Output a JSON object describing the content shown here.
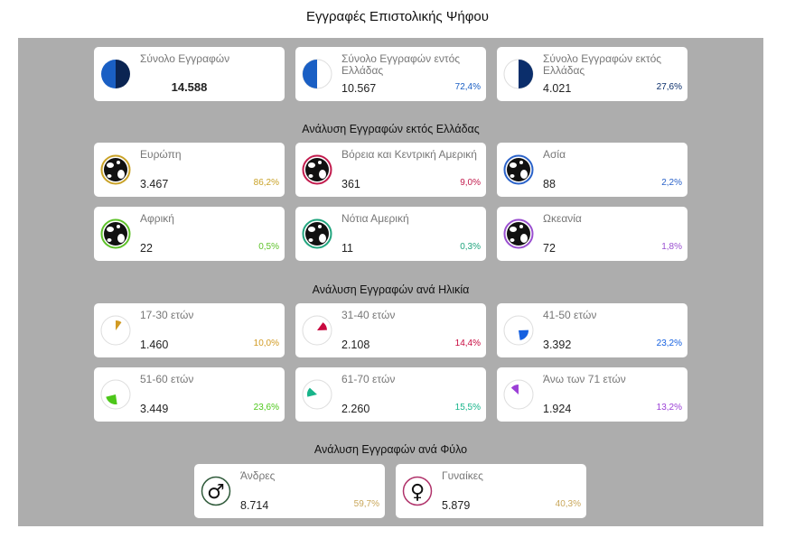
{
  "title": "Εγγραφές Επιστολικής Ψήφου",
  "totals": [
    {
      "label": "Σύνολο Εγγραφών",
      "value": "14.588",
      "icon": "half-circle-full-icon"
    },
    {
      "label": "Σύνολο Εγγραφών εντός Ελλάδας",
      "value": "10.567",
      "pct": "72,4%",
      "color": "#1a5fc4",
      "icon": "half-circle-left-icon"
    },
    {
      "label": "Σύνολο Εγγραφών εκτός Ελλάδας",
      "value": "4.021",
      "pct": "27,6%",
      "color": "#0b2e6b",
      "icon": "half-circle-right-icon"
    }
  ],
  "regions_heading": "Ανάλυση Εγγραφών εκτός Ελλάδας",
  "regions": [
    {
      "label": "Ευρώπη",
      "value": "3.467",
      "pct": "86,2%",
      "color": "#c9a227",
      "icon": "globe-icon"
    },
    {
      "label": "Βόρεια και Κεντρική Αμερική",
      "value": "361",
      "pct": "9,0%",
      "color": "#c21b4d",
      "icon": "globe-icon"
    },
    {
      "label": "Ασία",
      "value": "88",
      "pct": "2,2%",
      "color": "#2a62c9",
      "icon": "globe-icon"
    },
    {
      "label": "Αφρική",
      "value": "22",
      "pct": "0,5%",
      "color": "#5ec22a",
      "icon": "globe-icon"
    },
    {
      "label": "Νότια Αμερική",
      "value": "11",
      "pct": "0,3%",
      "color": "#21a57e",
      "icon": "globe-icon"
    },
    {
      "label": "Ωκεανία",
      "value": "72",
      "pct": "1,8%",
      "color": "#9a4fd0",
      "icon": "globe-icon"
    }
  ],
  "ages_heading": "Ανάλυση Εγγραφών ανά Ηλικία",
  "ages": [
    {
      "label": "17-30 ετών",
      "value": "1.460",
      "pct": "10,0%",
      "share": 10.0,
      "color": "#d19a22",
      "icon": "pie-icon"
    },
    {
      "label": "31-40 ετών",
      "value": "2.108",
      "pct": "14,4%",
      "share": 14.4,
      "color": "#c8093f",
      "icon": "pie-icon"
    },
    {
      "label": "41-50 ετών",
      "value": "3.392",
      "pct": "23,2%",
      "share": 23.2,
      "color": "#1560e0",
      "icon": "pie-icon"
    },
    {
      "label": "51-60 ετών",
      "value": "3.449",
      "pct": "23,6%",
      "share": 23.6,
      "color": "#4dc71a",
      "icon": "pie-icon"
    },
    {
      "label": "61-70 ετών",
      "value": "2.260",
      "pct": "15,5%",
      "share": 15.5,
      "color": "#17b48a",
      "icon": "pie-icon"
    },
    {
      "label": "Άνω των 71 ετών",
      "value": "1.924",
      "pct": "13,2%",
      "share": 13.2,
      "color": "#9b3fd6",
      "icon": "pie-icon"
    }
  ],
  "gender_heading": "Ανάλυση Εγγραφών ανά Φύλο",
  "genders": [
    {
      "label": "Άνδρες",
      "value": "8.714",
      "pct": "59,7%",
      "color": "#c9a75a",
      "ring": "#2f5a3a",
      "symbol": "♂",
      "icon": "male-icon"
    },
    {
      "label": "Γυναίκες",
      "value": "5.879",
      "pct": "40,3%",
      "color": "#c9a75a",
      "ring": "#b0326a",
      "symbol": "♀",
      "icon": "female-icon"
    }
  ]
}
